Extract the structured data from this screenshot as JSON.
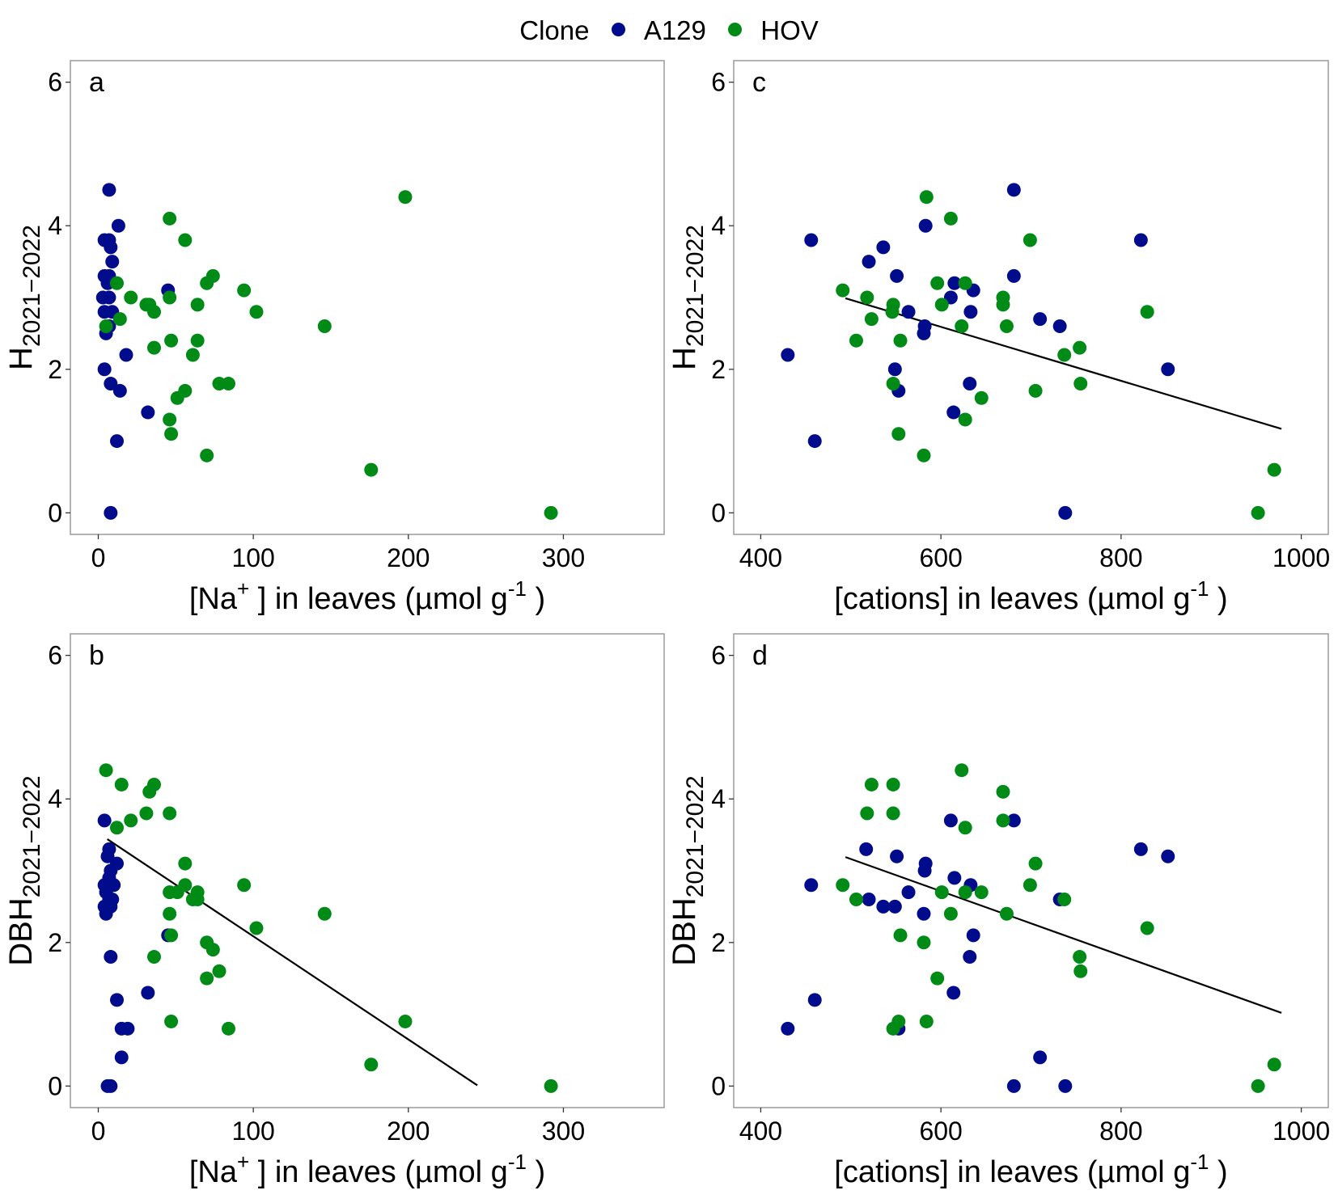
{
  "legend": {
    "title": "Clone",
    "entries": [
      {
        "label": "A129",
        "color": "#000c8b"
      },
      {
        "label": "HOV",
        "color": "#008b16"
      }
    ]
  },
  "chart_data": [
    {
      "type": "scatter",
      "panel_label": "a",
      "xlabel_parts": {
        "pre": "[Na",
        "sup": "+",
        "mid": " ] in leaves (µmol g",
        "sup2": "-1",
        "post": " )"
      },
      "ylabel": {
        "main": "H",
        "sub": "2021−2022"
      },
      "xlim": [
        -18,
        365
      ],
      "ylim": [
        -0.3,
        6.3
      ],
      "xticks": [
        0,
        100,
        200,
        300
      ],
      "yticks": [
        0,
        2,
        4,
        6
      ],
      "grid": false,
      "series": [
        {
          "name": "A129",
          "color": "#000c8b",
          "points": [
            [
              7,
              4.5
            ],
            [
              13,
              4.0
            ],
            [
              4,
              3.8
            ],
            [
              7,
              3.8
            ],
            [
              8,
              3.7
            ],
            [
              9,
              3.5
            ],
            [
              4,
              3.3
            ],
            [
              7,
              3.3
            ],
            [
              6,
              3.2
            ],
            [
              45,
              3.1
            ],
            [
              3,
              3.0
            ],
            [
              7,
              3.0
            ],
            [
              4,
              2.8
            ],
            [
              9,
              2.8
            ],
            [
              7,
              2.6
            ],
            [
              5,
              2.5
            ],
            [
              18,
              2.2
            ],
            [
              4,
              2.0
            ],
            [
              8,
              1.8
            ],
            [
              14,
              1.7
            ],
            [
              32,
              1.4
            ],
            [
              12,
              1.0
            ],
            [
              8,
              0.0
            ]
          ]
        },
        {
          "name": "HOV",
          "color": "#008b16",
          "points": [
            [
              198,
              4.4
            ],
            [
              46,
              4.1
            ],
            [
              56,
              3.8
            ],
            [
              74,
              3.3
            ],
            [
              70,
              3.2
            ],
            [
              12,
              3.2
            ],
            [
              94,
              3.1
            ],
            [
              21,
              3.0
            ],
            [
              46,
              3.0
            ],
            [
              31,
              2.9
            ],
            [
              33,
              2.9
            ],
            [
              64,
              2.9
            ],
            [
              36,
              2.8
            ],
            [
              102,
              2.8
            ],
            [
              14,
              2.7
            ],
            [
              5,
              2.6
            ],
            [
              146,
              2.6
            ],
            [
              47,
              2.4
            ],
            [
              64,
              2.4
            ],
            [
              36,
              2.3
            ],
            [
              61,
              2.2
            ],
            [
              78,
              1.8
            ],
            [
              84,
              1.8
            ],
            [
              56,
              1.7
            ],
            [
              51,
              1.6
            ],
            [
              46,
              1.3
            ],
            [
              47,
              1.1
            ],
            [
              70,
              0.8
            ],
            [
              176,
              0.6
            ],
            [
              292,
              0.0
            ]
          ]
        }
      ],
      "regression": null
    },
    {
      "type": "scatter",
      "panel_label": "b",
      "xlabel_parts": {
        "pre": "[Na",
        "sup": "+",
        "mid": " ] in leaves (µmol g",
        "sup2": "-1",
        "post": " )"
      },
      "ylabel": {
        "main": "DBH",
        "sub": "2021−2022"
      },
      "xlim": [
        -18,
        365
      ],
      "ylim": [
        -0.3,
        6.3
      ],
      "xticks": [
        0,
        100,
        200,
        300
      ],
      "yticks": [
        0,
        2,
        4,
        6
      ],
      "grid": false,
      "series": [
        {
          "name": "A129",
          "color": "#000c8b",
          "points": [
            [
              4,
              3.7
            ],
            [
              7,
              3.3
            ],
            [
              6,
              3.2
            ],
            [
              12,
              3.1
            ],
            [
              8,
              3.0
            ],
            [
              7,
              2.9
            ],
            [
              4,
              2.8
            ],
            [
              10,
              2.8
            ],
            [
              5,
              2.7
            ],
            [
              7,
              2.6
            ],
            [
              9,
              2.6
            ],
            [
              4,
              2.5
            ],
            [
              8,
              2.5
            ],
            [
              5,
              2.4
            ],
            [
              45,
              2.1
            ],
            [
              8,
              1.8
            ],
            [
              12,
              1.2
            ],
            [
              32,
              1.3
            ],
            [
              15,
              0.8
            ],
            [
              19,
              0.8
            ],
            [
              15,
              0.4
            ],
            [
              8,
              0.0
            ],
            [
              6,
              0.0
            ]
          ]
        },
        {
          "name": "HOV",
          "color": "#008b16",
          "points": [
            [
              5,
              4.4
            ],
            [
              15,
              4.2
            ],
            [
              36,
              4.2
            ],
            [
              33,
              4.1
            ],
            [
              31,
              3.8
            ],
            [
              46,
              3.8
            ],
            [
              21,
              3.7
            ],
            [
              12,
              3.6
            ],
            [
              56,
              3.1
            ],
            [
              94,
              2.8
            ],
            [
              56,
              2.8
            ],
            [
              46,
              2.7
            ],
            [
              51,
              2.7
            ],
            [
              64,
              2.7
            ],
            [
              61,
              2.6
            ],
            [
              64,
              2.6
            ],
            [
              46,
              2.4
            ],
            [
              146,
              2.4
            ],
            [
              102,
              2.2
            ],
            [
              47,
              2.1
            ],
            [
              70,
              2.0
            ],
            [
              74,
              1.9
            ],
            [
              36,
              1.8
            ],
            [
              78,
              1.6
            ],
            [
              70,
              1.5
            ],
            [
              47,
              0.9
            ],
            [
              198,
              0.9
            ],
            [
              84,
              0.8
            ],
            [
              176,
              0.3
            ],
            [
              292,
              0.0
            ]
          ]
        }
      ],
      "regression": {
        "x": [
          5.8,
          244.5
        ],
        "y": [
          3.44,
          0.01
        ]
      }
    },
    {
      "type": "scatter",
      "panel_label": "c",
      "xlabel_parts": {
        "pre": "[cations] in leaves (µmol g",
        "sup": "",
        "mid": "",
        "sup2": "-1",
        "post": " )"
      },
      "ylabel": {
        "main": "H",
        "sub": "2021−2022"
      },
      "xlim": [
        370,
        1030
      ],
      "ylim": [
        -0.3,
        6.3
      ],
      "xticks": [
        400,
        600,
        800,
        1000
      ],
      "yticks": [
        0,
        2,
        4,
        6
      ],
      "grid": false,
      "series": [
        {
          "name": "A129",
          "color": "#000c8b",
          "points": [
            [
              681,
              4.5
            ],
            [
              583,
              4.0
            ],
            [
              456,
              3.8
            ],
            [
              822,
              3.8
            ],
            [
              536,
              3.7
            ],
            [
              520,
              3.5
            ],
            [
              551,
              3.3
            ],
            [
              681,
              3.3
            ],
            [
              615,
              3.2
            ],
            [
              636,
              3.1
            ],
            [
              611,
              3.0
            ],
            [
              564,
              2.8
            ],
            [
              633,
              2.8
            ],
            [
              710,
              2.7
            ],
            [
              582,
              2.6
            ],
            [
              732,
              2.6
            ],
            [
              581,
              2.5
            ],
            [
              430,
              2.2
            ],
            [
              852,
              2.0
            ],
            [
              549,
              2.0
            ],
            [
              632,
              1.8
            ],
            [
              553,
              1.7
            ],
            [
              614,
              1.4
            ],
            [
              460,
              1.0
            ],
            [
              738,
              0.0
            ]
          ]
        },
        {
          "name": "HOV",
          "color": "#008b16",
          "points": [
            [
              584,
              4.4
            ],
            [
              611,
              4.1
            ],
            [
              699,
              3.8
            ],
            [
              596,
              3.2
            ],
            [
              627,
              3.2
            ],
            [
              491,
              3.1
            ],
            [
              518,
              3.0
            ],
            [
              669,
              3.0
            ],
            [
              601,
              2.9
            ],
            [
              547,
              2.9
            ],
            [
              669,
              2.9
            ],
            [
              546,
              2.8
            ],
            [
              829,
              2.8
            ],
            [
              523,
              2.7
            ],
            [
              673,
              2.6
            ],
            [
              623,
              2.6
            ],
            [
              506,
              2.4
            ],
            [
              555,
              2.4
            ],
            [
              754,
              2.3
            ],
            [
              737,
              2.2
            ],
            [
              547,
              1.8
            ],
            [
              755,
              1.8
            ],
            [
              705,
              1.7
            ],
            [
              645,
              1.6
            ],
            [
              627,
              1.3
            ],
            [
              553,
              1.1
            ],
            [
              581,
              0.8
            ],
            [
              970,
              0.6
            ],
            [
              952,
              0.0
            ]
          ]
        }
      ],
      "regression": {
        "x": [
          494,
          978
        ],
        "y": [
          2.99,
          1.17
        ]
      }
    },
    {
      "type": "scatter",
      "panel_label": "d",
      "xlabel_parts": {
        "pre": "[cations] in leaves (µmol g",
        "sup": "",
        "mid": "",
        "sup2": "-1",
        "post": " )"
      },
      "ylabel": {
        "main": "DBH",
        "sub": "2021−2022"
      },
      "xlim": [
        370,
        1030
      ],
      "ylim": [
        -0.3,
        6.3
      ],
      "xticks": [
        400,
        600,
        800,
        1000
      ],
      "yticks": [
        0,
        2,
        4,
        6
      ],
      "grid": false,
      "series": [
        {
          "name": "A129",
          "color": "#000c8b",
          "points": [
            [
              611,
              3.7
            ],
            [
              681,
              3.7
            ],
            [
              822,
              3.3
            ],
            [
              517,
              3.3
            ],
            [
              852,
              3.2
            ],
            [
              551,
              3.2
            ],
            [
              583,
              3.1
            ],
            [
              582,
              3.0
            ],
            [
              615,
              2.9
            ],
            [
              633,
              2.8
            ],
            [
              456,
              2.8
            ],
            [
              564,
              2.7
            ],
            [
              520,
              2.6
            ],
            [
              732,
              2.6
            ],
            [
              536,
              2.5
            ],
            [
              549,
              2.5
            ],
            [
              581,
              2.4
            ],
            [
              636,
              2.1
            ],
            [
              632,
              1.8
            ],
            [
              614,
              1.3
            ],
            [
              460,
              1.2
            ],
            [
              430,
              0.8
            ],
            [
              553,
              0.8
            ],
            [
              710,
              0.4
            ],
            [
              681,
              0.0
            ],
            [
              738,
              0.0
            ]
          ]
        },
        {
          "name": "HOV",
          "color": "#008b16",
          "points": [
            [
              623,
              4.4
            ],
            [
              523,
              4.2
            ],
            [
              547,
              4.2
            ],
            [
              669,
              4.1
            ],
            [
              518,
              3.8
            ],
            [
              547,
              3.8
            ],
            [
              669,
              3.7
            ],
            [
              627,
              3.6
            ],
            [
              705,
              3.1
            ],
            [
              491,
              2.8
            ],
            [
              699,
              2.8
            ],
            [
              506,
              2.6
            ],
            [
              737,
              2.6
            ],
            [
              601,
              2.7
            ],
            [
              627,
              2.7
            ],
            [
              645,
              2.7
            ],
            [
              611,
              2.4
            ],
            [
              673,
              2.4
            ],
            [
              829,
              2.2
            ],
            [
              555,
              2.1
            ],
            [
              581,
              2.0
            ],
            [
              754,
              1.8
            ],
            [
              755,
              1.6
            ],
            [
              596,
              1.5
            ],
            [
              553,
              0.9
            ],
            [
              584,
              0.9
            ],
            [
              547,
              0.8
            ],
            [
              970,
              0.3
            ],
            [
              952,
              0.0
            ]
          ]
        }
      ],
      "regression": {
        "x": [
          494,
          978
        ],
        "y": [
          3.19,
          1.02
        ]
      }
    }
  ]
}
